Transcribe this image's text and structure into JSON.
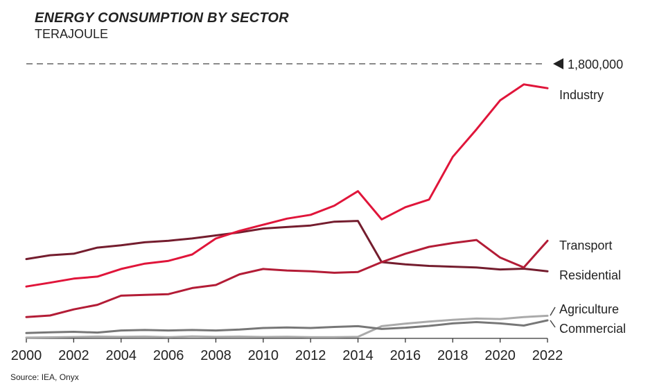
{
  "chart_data": {
    "type": "line",
    "title": "ENERGY CONSUMPTION BY SECTOR",
    "subtitle": "TERAJOULE",
    "source": "Source: IEA, Onyx",
    "reference_line": {
      "value": 1800000,
      "label": "1,800,000"
    },
    "ylim": [
      0,
      1800000
    ],
    "x": [
      2000,
      2001,
      2002,
      2003,
      2004,
      2005,
      2006,
      2007,
      2008,
      2009,
      2010,
      2011,
      2012,
      2013,
      2014,
      2015,
      2016,
      2017,
      2018,
      2019,
      2020,
      2021,
      2022
    ],
    "x_ticks": [
      "2000",
      "2002",
      "2004",
      "2006",
      "2008",
      "2010",
      "2012",
      "2014",
      "2016",
      "2018",
      "2020",
      "2022"
    ],
    "series": [
      {
        "name": "Industry",
        "color": "#e0153a",
        "values": [
          340000,
          365000,
          392000,
          405000,
          455000,
          490000,
          508000,
          550000,
          655000,
          705000,
          745000,
          785000,
          810000,
          870000,
          965000,
          780000,
          860000,
          910000,
          1190000,
          1370000,
          1560000,
          1665000,
          1640000
        ]
      },
      {
        "name": "Transport",
        "color": "#b31c36",
        "values": [
          140000,
          150000,
          190000,
          220000,
          280000,
          285000,
          290000,
          330000,
          350000,
          420000,
          455000,
          445000,
          440000,
          430000,
          435000,
          500000,
          555000,
          600000,
          625000,
          645000,
          530000,
          465000,
          640000
        ]
      },
      {
        "name": "Residential",
        "color": "#741d2e",
        "values": [
          520000,
          545000,
          555000,
          595000,
          610000,
          630000,
          640000,
          655000,
          675000,
          695000,
          720000,
          730000,
          740000,
          765000,
          770000,
          500000,
          485000,
          475000,
          470000,
          465000,
          452000,
          457000,
          440000
        ]
      },
      {
        "name": "Agriculture",
        "color": "#aaaaaa",
        "values": [
          5000,
          7000,
          9000,
          12000,
          10000,
          12000,
          8000,
          13000,
          10000,
          12000,
          9000,
          11000,
          8000,
          8000,
          10000,
          80000,
          97000,
          110000,
          122000,
          130000,
          127000,
          140000,
          148000
        ]
      },
      {
        "name": "Commercial",
        "color": "#777777",
        "values": [
          35000,
          40000,
          43000,
          38000,
          52000,
          55000,
          52000,
          55000,
          52000,
          58000,
          68000,
          72000,
          68000,
          75000,
          80000,
          62000,
          70000,
          82000,
          98000,
          107000,
          98000,
          84000,
          118000
        ]
      }
    ]
  }
}
